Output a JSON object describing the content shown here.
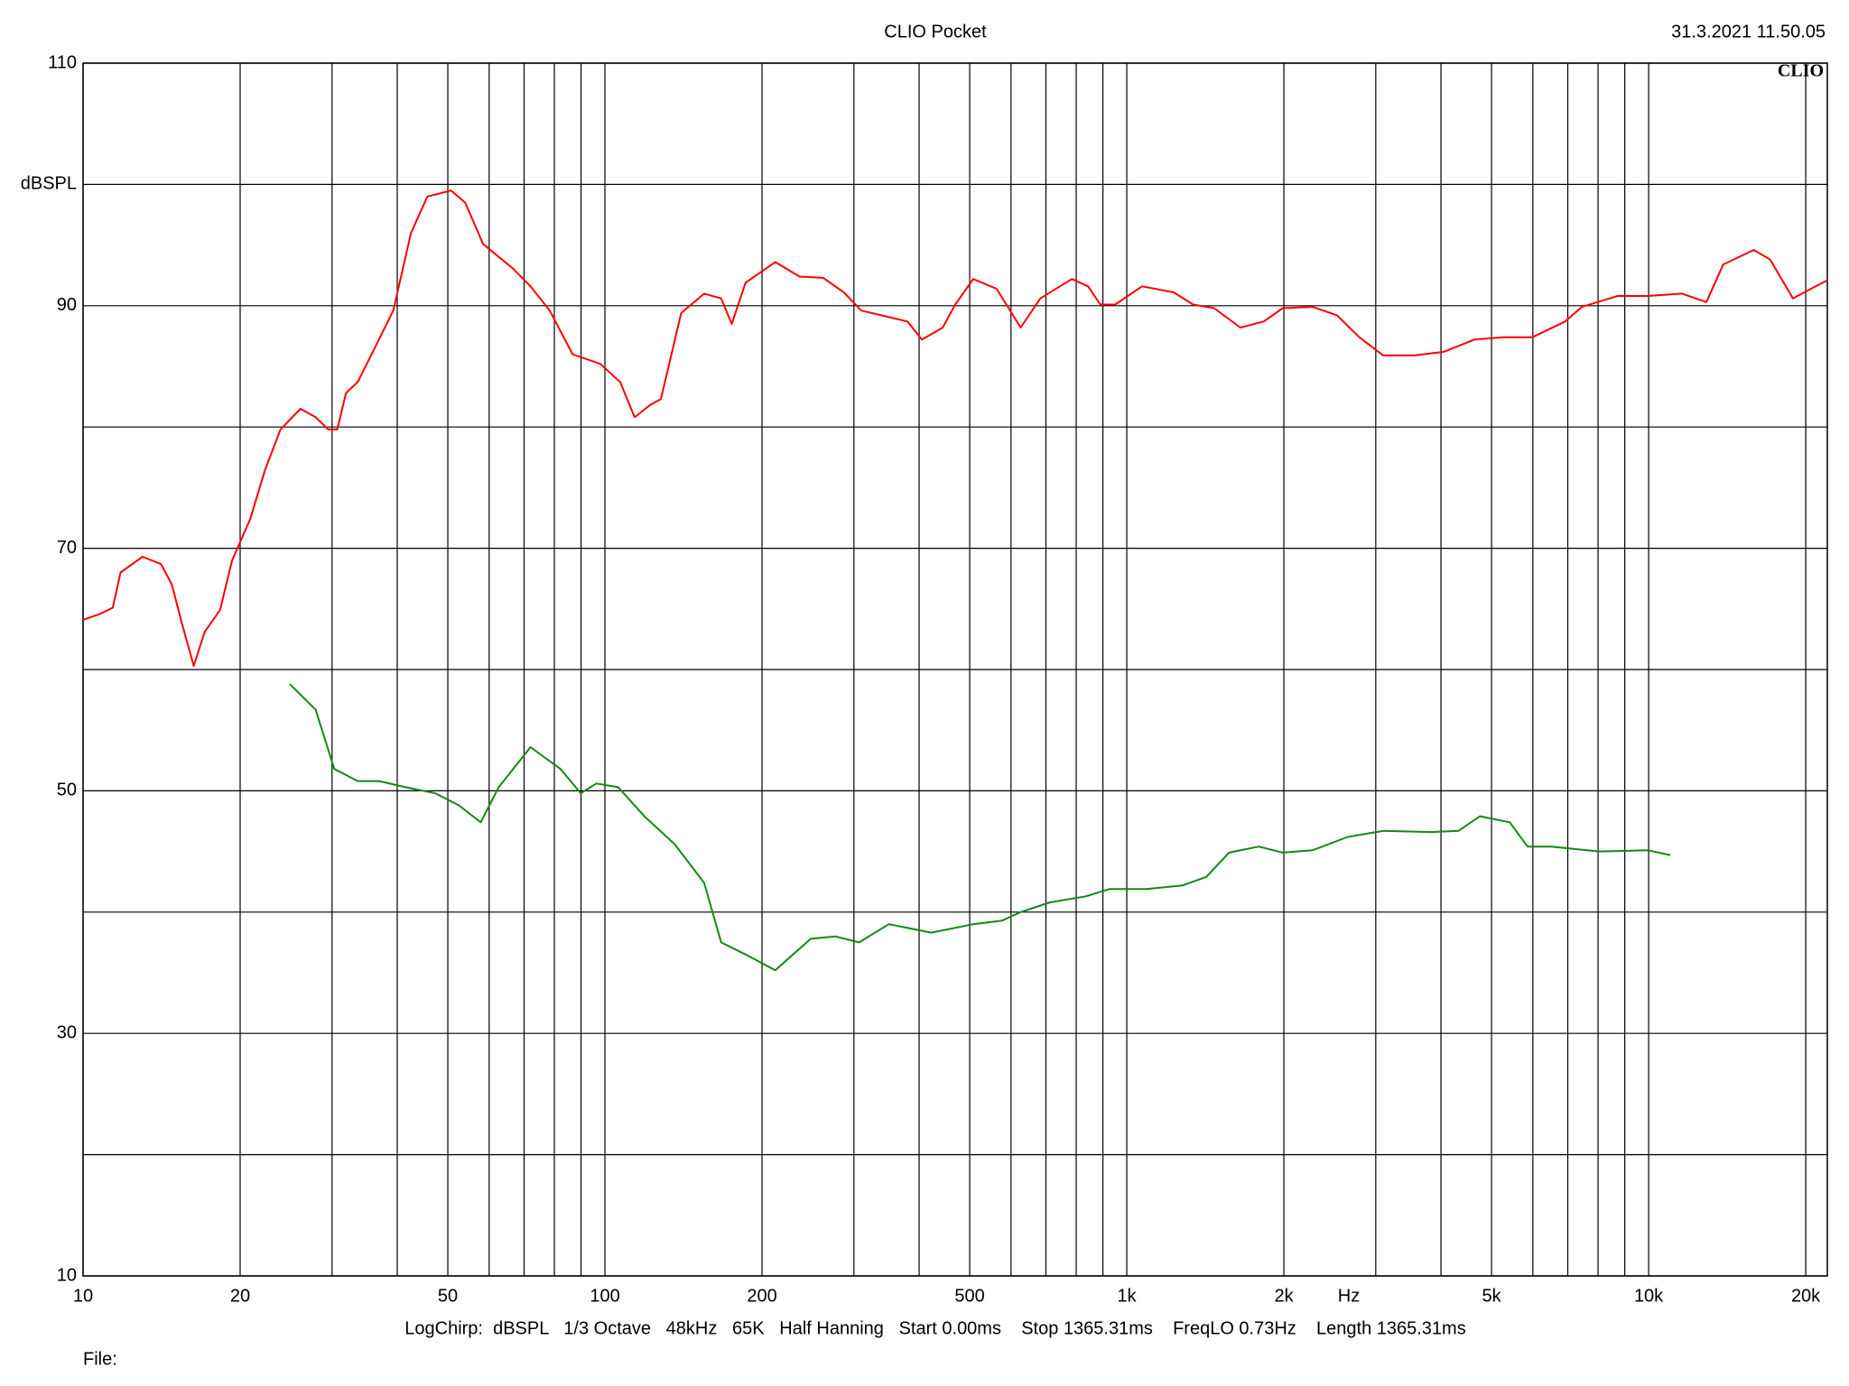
{
  "chart_data": {
    "type": "line",
    "title": "CLIO Pocket",
    "timestamp": "31.3.2021 11.50.05",
    "logo": "CLIO",
    "x_label": "Hz",
    "footer": "LogChirp:  dBSPL   1/3 Octave   48kHz   65K   Half Hanning   Start 0.00ms    Stop 1365.31ms    FreqLO 0.73Hz    Length 1365.31ms",
    "file_label": "File:",
    "xscale": "log",
    "xlim": [
      10,
      22000
    ],
    "ylim": [
      10,
      110
    ],
    "xticks": [
      10,
      20,
      50,
      100,
      200,
      500,
      {
        "value": 1000,
        "label": "1k"
      },
      {
        "value": 2000,
        "label": "2k"
      },
      {
        "value": 5000,
        "label": "5k"
      },
      {
        "value": 10000,
        "label": "10k"
      },
      {
        "value": 20000,
        "label": "20k"
      }
    ],
    "xminor": [
      30,
      40,
      60,
      70,
      80,
      90,
      300,
      400,
      600,
      700,
      800,
      900,
      3000,
      4000,
      6000,
      7000,
      8000,
      9000
    ],
    "yticks": [
      10,
      30,
      50,
      70,
      90,
      {
        "value": 100,
        "label": "dBSPL"
      },
      110
    ],
    "yminor": [
      20,
      40,
      60,
      80
    ],
    "grid": true,
    "series": [
      {
        "color": "#ff0000",
        "x": [
          10,
          10.8,
          11.4,
          11.8,
          13.0,
          14.1,
          14.8,
          15.4,
          16.3,
          17.1,
          18.3,
          19.3,
          20.9,
          22.3,
          23.9,
          26.1,
          27.9,
          29.5,
          30.7,
          31.9,
          33.6,
          36.4,
          39.3,
          42.5,
          45.7,
          50.7,
          54,
          58.4,
          66.5,
          72,
          78.4,
          86.7,
          98,
          107,
          114,
          122,
          128,
          140,
          155,
          167,
          175,
          186,
          212,
          236,
          262,
          287,
          310,
          340,
          380,
          405,
          444,
          469,
          508,
          563,
          626,
          683,
          785,
          843,
          890,
          950,
          1070,
          1230,
          1340,
          1470,
          1650,
          1830,
          1990,
          2270,
          2530,
          2790,
          3100,
          3560,
          4050,
          4630,
          5270,
          5990,
          6920,
          7450,
          8720,
          9970,
          11600,
          12900,
          13900,
          15900,
          17100,
          18900,
          20900,
          22000
        ],
        "values": [
          64.1,
          64.6,
          65.1,
          68.0,
          69.3,
          68.7,
          67.0,
          64.1,
          60.3,
          63.1,
          64.9,
          69.0,
          72.4,
          76.4,
          79.8,
          81.5,
          80.8,
          79.8,
          79.8,
          82.8,
          83.7,
          86.7,
          89.6,
          96.0,
          99.0,
          99.5,
          98.5,
          95.1,
          93.1,
          91.6,
          89.6,
          86.0,
          85.2,
          83.7,
          80.8,
          81.8,
          82.3,
          89.4,
          91.0,
          90.6,
          88.5,
          91.9,
          93.6,
          92.4,
          92.3,
          91.1,
          89.6,
          89.2,
          88.7,
          87.2,
          88.2,
          90.1,
          92.2,
          91.4,
          88.2,
          90.6,
          92.2,
          91.6,
          90.1,
          90.1,
          91.6,
          91.1,
          90.1,
          89.8,
          88.2,
          88.7,
          89.8,
          89.9,
          89.2,
          87.4,
          85.9,
          85.9,
          86.2,
          87.2,
          87.4,
          87.4,
          88.7,
          89.9,
          90.8,
          90.8,
          91.0,
          90.3,
          93.4,
          94.6,
          93.8,
          90.6,
          91.6,
          92.1
        ]
      },
      {
        "color": "#108a10",
        "x": [
          24.9,
          27.9,
          30.3,
          33.6,
          36.9,
          41.5,
          47.3,
          52.5,
          57.8,
          62.6,
          72,
          82.2,
          89.9,
          96.3,
          106,
          119,
          136,
          155,
          167,
          186,
          212,
          248,
          276,
          307,
          350,
          422,
          508,
          577,
          626,
          713,
          835,
          926,
          1090,
          1280,
          1420,
          1570,
          1790,
          1990,
          2270,
          2650,
          3100,
          3830,
          4320,
          4750,
          5420,
          5860,
          6510,
          8040,
          9970,
          11000
        ],
        "values": [
          58.8,
          56.7,
          51.8,
          50.8,
          50.8,
          50.3,
          49.8,
          48.8,
          47.4,
          50.3,
          53.6,
          51.8,
          49.8,
          50.6,
          50.3,
          47.9,
          45.6,
          42.4,
          37.5,
          36.5,
          35.2,
          37.8,
          38.0,
          37.5,
          39.0,
          38.3,
          39.0,
          39.3,
          40.0,
          40.8,
          41.3,
          41.9,
          41.9,
          42.2,
          42.9,
          44.9,
          45.4,
          44.9,
          45.1,
          46.2,
          46.7,
          46.6,
          46.7,
          47.9,
          47.4,
          45.4,
          45.4,
          45.0,
          45.1,
          44.7
        ]
      }
    ]
  }
}
